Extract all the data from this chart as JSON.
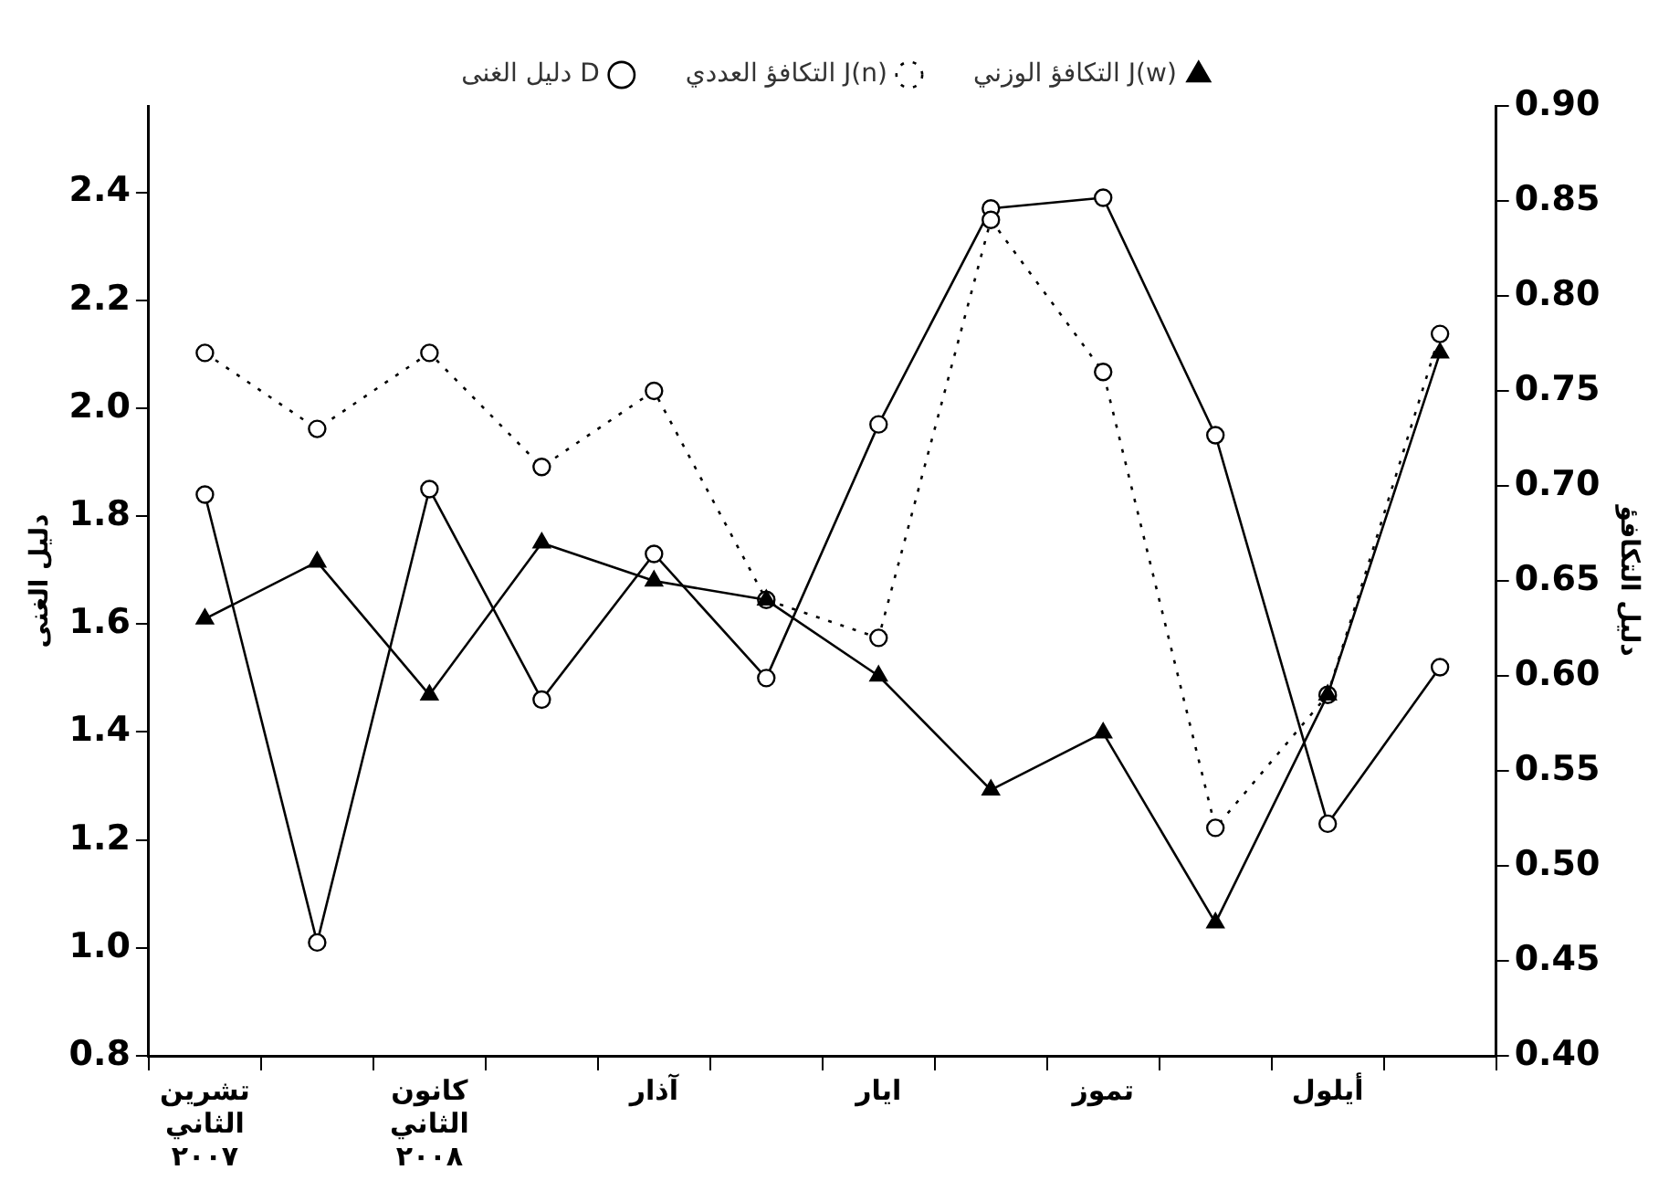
{
  "chart_data": {
    "type": "line",
    "categories": [
      "تشرين الثاني ٢٠٠٧",
      null,
      "كانون الثاني ٢٠٠٨",
      null,
      "آذار",
      null,
      "ايار",
      null,
      "تموز",
      null,
      "أيلول",
      null
    ],
    "ylabel": "دليل الغنى",
    "y2label": "دليل التكافؤ",
    "ylim": [
      0.8,
      2.56
    ],
    "yticks": [
      {
        "value": 0.8,
        "label": "0.8"
      },
      {
        "value": 1.0,
        "label": "1.0"
      },
      {
        "value": 1.2,
        "label": "1.2"
      },
      {
        "value": 1.4,
        "label": "1.4"
      },
      {
        "value": 1.6,
        "label": "1.6"
      },
      {
        "value": 1.8,
        "label": "1.8"
      },
      {
        "value": 2.0,
        "label": "2.0"
      },
      {
        "value": 2.2,
        "label": "2.2"
      },
      {
        "value": 2.4,
        "label": "2.4"
      }
    ],
    "y2lim": [
      0.4,
      0.9
    ],
    "y2ticks": [
      {
        "value": 0.4,
        "label": "0.40"
      },
      {
        "value": 0.45,
        "label": "0.45"
      },
      {
        "value": 0.5,
        "label": "0.50"
      },
      {
        "value": 0.55,
        "label": "0.55"
      },
      {
        "value": 0.6,
        "label": "0.60"
      },
      {
        "value": 0.65,
        "label": "0.65"
      },
      {
        "value": 0.7,
        "label": "0.70"
      },
      {
        "value": 0.75,
        "label": "0.75"
      },
      {
        "value": 0.8,
        "label": "0.80"
      },
      {
        "value": 0.85,
        "label": "0.85"
      },
      {
        "value": 0.9,
        "label": "0.90"
      }
    ],
    "grid": false,
    "legend": "top",
    "series": [
      {
        "name": "التكافؤ الوزني J(w)",
        "color": "#000000",
        "axis": "y2",
        "marker": "triangle",
        "line_style": "solid",
        "values": [
          0.63,
          0.66,
          0.59,
          0.67,
          0.65,
          0.64,
          0.6,
          0.54,
          0.57,
          0.47,
          0.59,
          0.77
        ]
      },
      {
        "name": "التكافؤ العددي J(n)",
        "color": "#000000",
        "axis": "y2",
        "marker": "circle",
        "line_style": "dotted",
        "values": [
          0.77,
          0.73,
          0.77,
          0.71,
          0.75,
          0.64,
          0.62,
          0.84,
          0.76,
          0.52,
          0.59,
          0.78
        ]
      },
      {
        "name": "دليل الغنى D",
        "color": "#000000",
        "axis": "y",
        "marker": "circle",
        "line_style": "solid",
        "values": [
          1.84,
          1.01,
          1.85,
          1.46,
          1.73,
          1.5,
          1.97,
          2.37,
          2.39,
          1.95,
          1.23,
          1.52
        ]
      }
    ]
  }
}
